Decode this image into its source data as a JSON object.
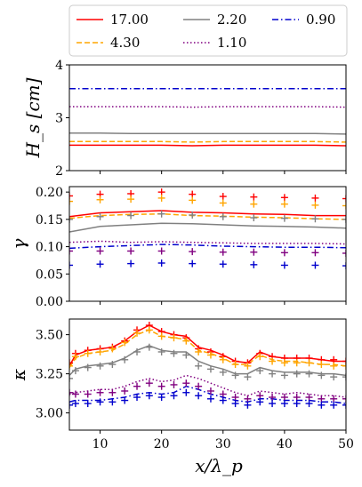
{
  "chart_data": [
    {
      "type": "line",
      "ylabel": "H_s [cm]",
      "ylim": [
        2,
        4
      ],
      "yticks": [
        "2",
        "3",
        "4"
      ],
      "xlim": [
        5,
        50
      ],
      "x": [
        5,
        10,
        15,
        20,
        25,
        30,
        35,
        40,
        45,
        50
      ],
      "series": [
        {
          "name": "17.00",
          "color": "#ff0000",
          "dash": "solid",
          "values": [
            2.48,
            2.48,
            2.48,
            2.48,
            2.47,
            2.48,
            2.48,
            2.48,
            2.48,
            2.47
          ]
        },
        {
          "name": "4.30",
          "color": "#ffa500",
          "dash": "dashed",
          "values": [
            2.55,
            2.55,
            2.55,
            2.55,
            2.54,
            2.55,
            2.55,
            2.55,
            2.55,
            2.54
          ]
        },
        {
          "name": "2.20",
          "color": "#808080",
          "dash": "solid",
          "values": [
            2.71,
            2.71,
            2.7,
            2.7,
            2.7,
            2.7,
            2.7,
            2.7,
            2.7,
            2.69
          ]
        },
        {
          "name": "1.10",
          "color": "#800080",
          "dash": "dotted",
          "values": [
            3.21,
            3.21,
            3.21,
            3.21,
            3.2,
            3.21,
            3.21,
            3.21,
            3.21,
            3.2
          ]
        },
        {
          "name": "0.90",
          "color": "#0000cd",
          "dash": "dashdot",
          "values": [
            3.55,
            3.55,
            3.55,
            3.55,
            3.55,
            3.55,
            3.55,
            3.55,
            3.55,
            3.55
          ]
        }
      ]
    },
    {
      "type": "line",
      "ylabel": "γ",
      "ylim": [
        0.0,
        0.21
      ],
      "yticks": [
        "0.00",
        "0.05",
        "0.10",
        "0.15",
        "0.20"
      ],
      "xlim": [
        5,
        50
      ],
      "x": [
        5,
        10,
        15,
        20,
        25,
        30,
        35,
        40,
        45,
        50
      ],
      "series": [
        {
          "name": "17.00",
          "color": "#ff0000",
          "dash": "solid",
          "values": [
            0.155,
            0.162,
            0.164,
            0.166,
            0.163,
            0.162,
            0.16,
            0.159,
            0.157,
            0.157
          ]
        },
        {
          "name": "4.30",
          "color": "#ffa500",
          "dash": "dashed",
          "values": [
            0.152,
            0.157,
            0.159,
            0.16,
            0.157,
            0.156,
            0.154,
            0.153,
            0.151,
            0.15
          ]
        },
        {
          "name": "2.20",
          "color": "#808080",
          "dash": "solid",
          "values": [
            0.127,
            0.137,
            0.14,
            0.143,
            0.142,
            0.14,
            0.138,
            0.137,
            0.136,
            0.134
          ]
        },
        {
          "name": "1.10",
          "color": "#800080",
          "dash": "dotted",
          "values": [
            0.108,
            0.11,
            0.108,
            0.109,
            0.108,
            0.107,
            0.106,
            0.106,
            0.106,
            0.105
          ]
        },
        {
          "name": "0.90",
          "color": "#0000cd",
          "dash": "dashdot",
          "values": [
            0.097,
            0.1,
            0.102,
            0.104,
            0.103,
            0.101,
            0.1,
            0.099,
            0.099,
            0.098
          ]
        }
      ],
      "markers": [
        {
          "color": "#ff0000",
          "values": [
            0.193,
            0.196,
            0.197,
            0.2,
            0.196,
            0.192,
            0.191,
            0.19,
            0.189,
            0.188
          ]
        },
        {
          "color": "#ffa500",
          "values": [
            0.183,
            0.186,
            0.187,
            0.189,
            0.185,
            0.18,
            0.178,
            0.178,
            0.176,
            0.175
          ]
        },
        {
          "color": "#808080",
          "values": [
            0.15,
            0.155,
            0.157,
            0.16,
            0.158,
            0.155,
            0.153,
            0.152,
            0.151,
            0.15
          ]
        },
        {
          "color": "#800080",
          "values": [
            0.092,
            0.092,
            0.092,
            0.092,
            0.091,
            0.09,
            0.09,
            0.089,
            0.089,
            0.088
          ]
        },
        {
          "color": "#0000cd",
          "values": [
            0.066,
            0.068,
            0.069,
            0.07,
            0.069,
            0.068,
            0.067,
            0.066,
            0.066,
            0.065
          ]
        }
      ]
    },
    {
      "type": "line",
      "ylabel": "κ",
      "xlabel": "x/λ_p",
      "ylim": [
        2.89,
        3.6
      ],
      "yticks": [
        "3.00",
        "3.25",
        "3.50"
      ],
      "xlim": [
        5,
        50
      ],
      "xticks": [
        "10",
        "20",
        "30",
        "40",
        "50"
      ],
      "x": [
        5,
        6,
        8,
        10,
        12,
        14,
        16,
        18,
        20,
        22,
        24,
        26,
        28,
        30,
        32,
        34,
        36,
        38,
        40,
        42,
        44,
        46,
        48,
        50
      ],
      "series": [
        {
          "name": "17.00",
          "color": "#ff0000",
          "dash": "solid",
          "values": [
            3.3,
            3.37,
            3.4,
            3.41,
            3.42,
            3.46,
            3.52,
            3.56,
            3.52,
            3.5,
            3.49,
            3.42,
            3.4,
            3.37,
            3.33,
            3.32,
            3.39,
            3.36,
            3.35,
            3.35,
            3.35,
            3.34,
            3.33,
            3.33
          ]
        },
        {
          "name": "4.30",
          "color": "#ffa500",
          "dash": "dashed",
          "values": [
            3.29,
            3.35,
            3.38,
            3.39,
            3.4,
            3.44,
            3.5,
            3.53,
            3.49,
            3.48,
            3.47,
            3.4,
            3.38,
            3.35,
            3.31,
            3.31,
            3.37,
            3.34,
            3.33,
            3.33,
            3.32,
            3.31,
            3.31,
            3.3
          ]
        },
        {
          "name": "2.20",
          "color": "#808080",
          "dash": "solid",
          "values": [
            3.24,
            3.28,
            3.3,
            3.31,
            3.32,
            3.35,
            3.4,
            3.43,
            3.4,
            3.39,
            3.39,
            3.33,
            3.3,
            3.28,
            3.25,
            3.25,
            3.29,
            3.27,
            3.26,
            3.26,
            3.26,
            3.25,
            3.25,
            3.24
          ]
        },
        {
          "name": "1.10",
          "color": "#800080",
          "dash": "dotted",
          "values": [
            3.12,
            3.13,
            3.14,
            3.15,
            3.15,
            3.17,
            3.2,
            3.22,
            3.2,
            3.21,
            3.24,
            3.22,
            3.19,
            3.16,
            3.13,
            3.11,
            3.14,
            3.13,
            3.12,
            3.13,
            3.12,
            3.11,
            3.11,
            3.1
          ]
        },
        {
          "name": "0.90",
          "color": "#0000cd",
          "dash": "dashdot",
          "values": [
            3.07,
            3.08,
            3.08,
            3.08,
            3.09,
            3.1,
            3.12,
            3.13,
            3.12,
            3.13,
            3.17,
            3.15,
            3.12,
            3.1,
            3.08,
            3.07,
            3.09,
            3.09,
            3.08,
            3.08,
            3.08,
            3.07,
            3.07,
            3.06
          ]
        }
      ],
      "markers": [
        {
          "color": "#ff0000",
          "values": [
            3.32,
            3.38,
            3.4,
            3.41,
            3.42,
            3.46,
            3.53,
            3.56,
            3.52,
            3.5,
            3.48,
            3.41,
            3.39,
            3.36,
            3.33,
            3.32,
            3.38,
            3.36,
            3.35,
            3.35,
            3.35,
            3.34,
            3.34,
            3.33
          ]
        },
        {
          "color": "#ffa500",
          "values": [
            3.3,
            3.36,
            3.38,
            3.39,
            3.41,
            3.45,
            3.51,
            3.53,
            3.49,
            3.48,
            3.46,
            3.39,
            3.37,
            3.34,
            3.31,
            3.3,
            3.36,
            3.33,
            3.32,
            3.32,
            3.32,
            3.31,
            3.3,
            3.3
          ]
        },
        {
          "color": "#808080",
          "values": [
            3.22,
            3.27,
            3.29,
            3.3,
            3.31,
            3.34,
            3.39,
            3.42,
            3.39,
            3.38,
            3.37,
            3.3,
            3.28,
            3.26,
            3.24,
            3.23,
            3.27,
            3.25,
            3.24,
            3.25,
            3.25,
            3.24,
            3.23,
            3.23
          ]
        },
        {
          "color": "#800080",
          "values": [
            3.13,
            3.12,
            3.12,
            3.13,
            3.13,
            3.14,
            3.17,
            3.19,
            3.17,
            3.18,
            3.19,
            3.17,
            3.14,
            3.12,
            3.1,
            3.09,
            3.11,
            3.1,
            3.1,
            3.1,
            3.1,
            3.09,
            3.09,
            3.09
          ]
        },
        {
          "color": "#0000cd",
          "values": [
            3.05,
            3.06,
            3.06,
            3.07,
            3.07,
            3.08,
            3.1,
            3.11,
            3.1,
            3.11,
            3.13,
            3.11,
            3.09,
            3.08,
            3.06,
            3.05,
            3.07,
            3.06,
            3.06,
            3.06,
            3.06,
            3.05,
            3.05,
            3.05
          ]
        }
      ]
    }
  ],
  "legend": {
    "placement": "top",
    "entries": [
      {
        "label": "17.00",
        "color": "#ff0000",
        "dash": "solid"
      },
      {
        "label": "2.20",
        "color": "#808080",
        "dash": "solid"
      },
      {
        "label": "0.90",
        "color": "#0000cd",
        "dash": "dashdot"
      },
      {
        "label": "4.30",
        "color": "#ffa500",
        "dash": "dashed"
      },
      {
        "label": "1.10",
        "color": "#800080",
        "dash": "dotted"
      }
    ]
  }
}
